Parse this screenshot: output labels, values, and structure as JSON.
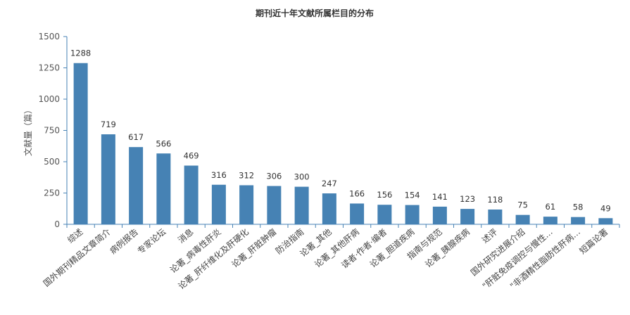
{
  "chart_data": {
    "type": "bar",
    "title": "期刊近十年文献所属栏目的分布",
    "xlabel": "",
    "ylabel": "文献量（篇）",
    "ylim": [
      0,
      1500
    ],
    "yticks": [
      0,
      250,
      500,
      750,
      1000,
      1250,
      1500
    ],
    "grid": false,
    "legend": "none",
    "bar_color": "#4682B4",
    "categories": [
      "综述",
      "国外期刊精品文章简介",
      "病例报告",
      "专家论坛",
      "消息",
      "论著_病毒性肝炎",
      "论著_肝纤维化及肝硬化",
      "论著_肝脏肿瘤",
      "防治指南",
      "论著_其他",
      "论著_其他肝病",
      "读者·作者·编者",
      "论著_胆道疾病",
      "指南与规范",
      "论著_胰腺疾病",
      "述评",
      "国外研究进展介绍",
      "\"肝脏免疫调控与慢性…",
      "\"非酒精性脂肪性肝病…",
      "短篇论著"
    ],
    "values": [
      1288,
      719,
      617,
      566,
      469,
      316,
      312,
      306,
      300,
      247,
      166,
      156,
      154,
      141,
      123,
      118,
      75,
      61,
      58,
      49
    ]
  }
}
